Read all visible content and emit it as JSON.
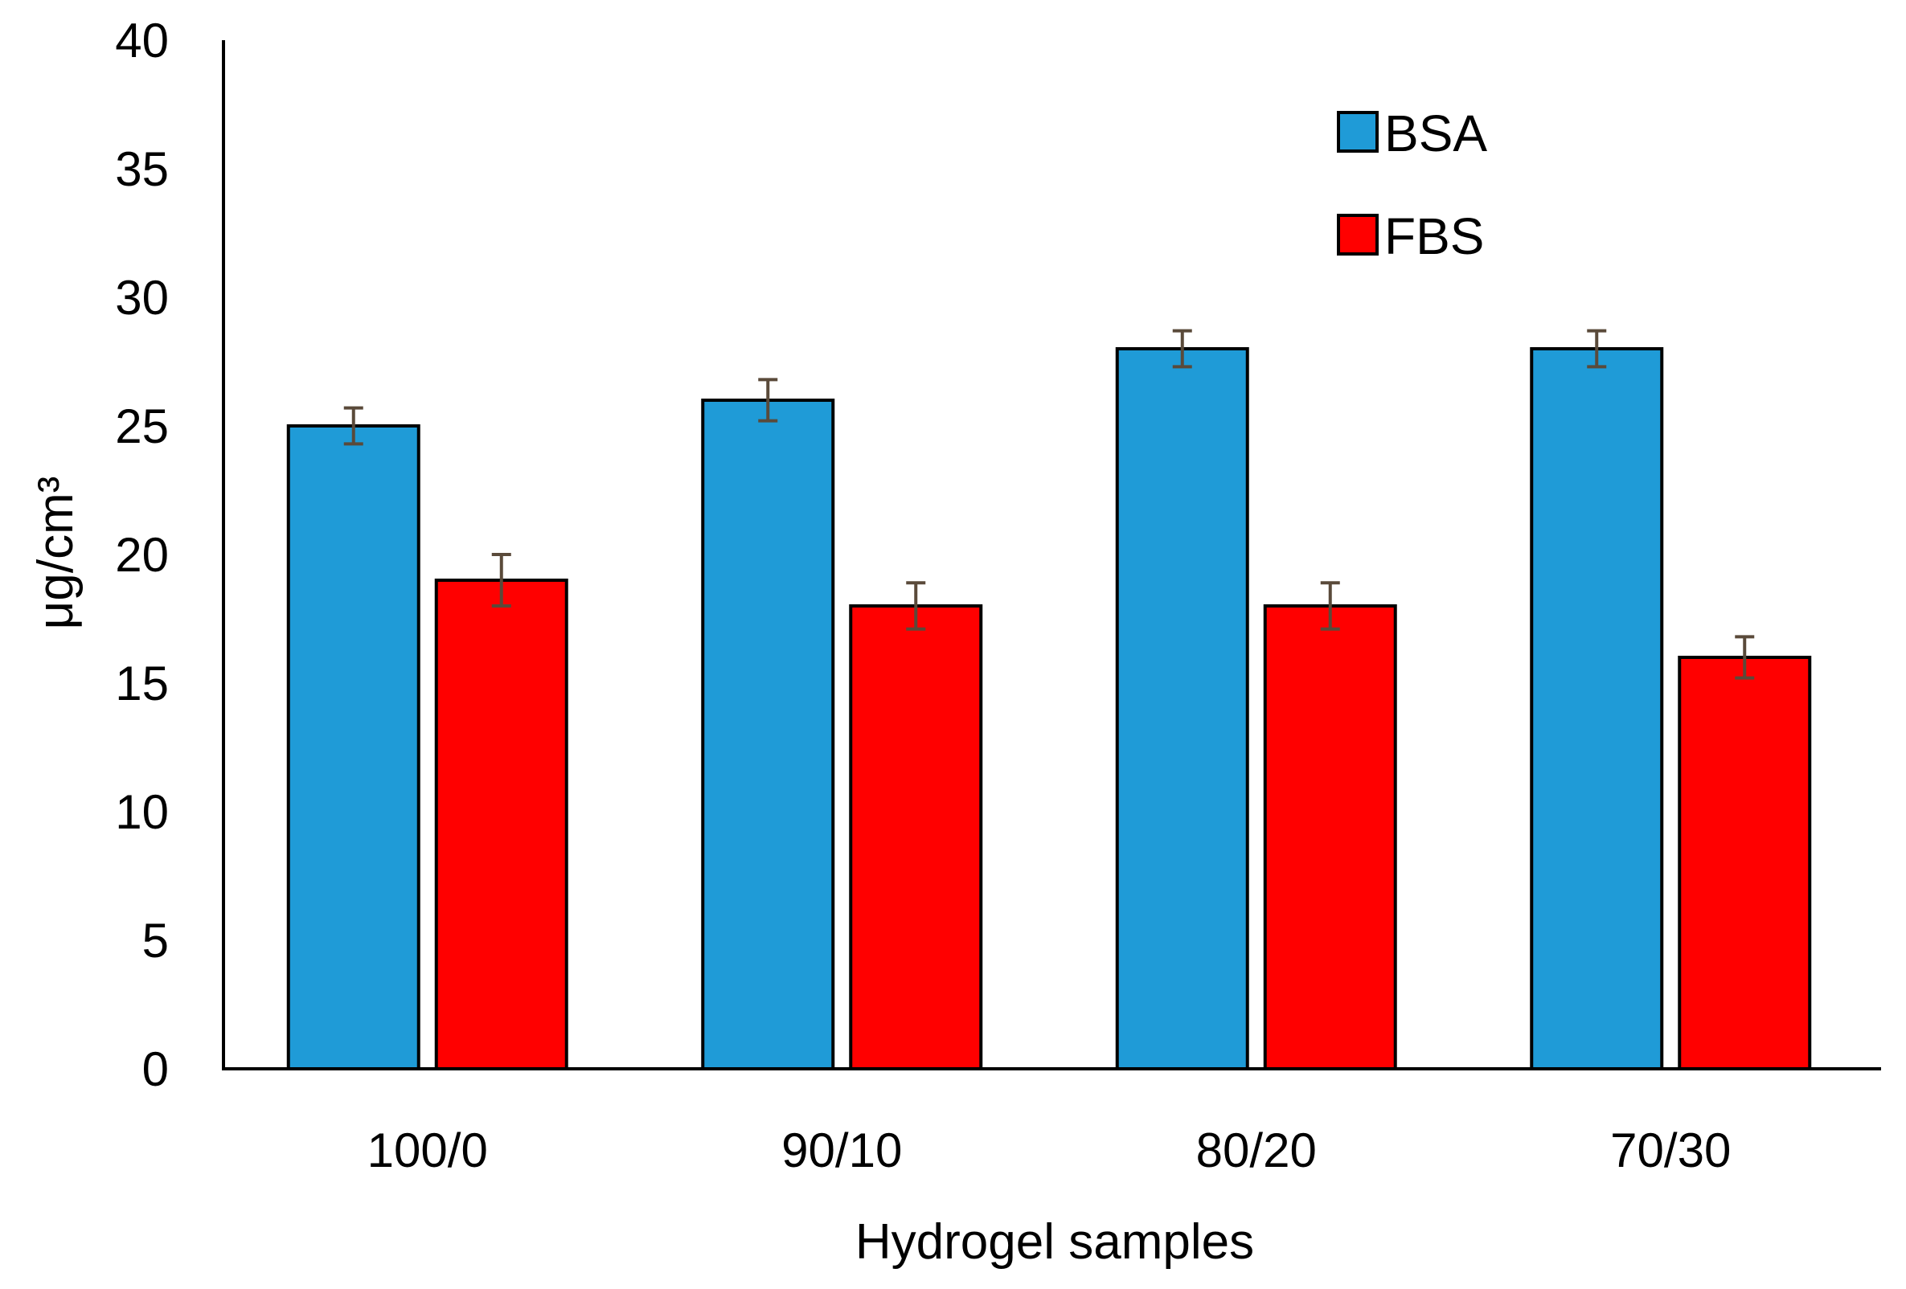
{
  "chart_data": {
    "type": "bar",
    "title": "",
    "xlabel": "Hydrogel samples",
    "ylabel": "μg/cm³",
    "ylim": [
      0,
      40
    ],
    "yticks": [
      0,
      5,
      10,
      15,
      20,
      25,
      30,
      35,
      40
    ],
    "categories": [
      "100/0",
      "90/10",
      "80/20",
      "70/30"
    ],
    "series": [
      {
        "name": "BSA",
        "color": "#1f9bd7",
        "values": [
          25,
          26,
          28,
          28
        ],
        "errors": [
          0.7,
          0.8,
          0.7,
          0.7
        ]
      },
      {
        "name": "FBS",
        "color": "#ff0000",
        "values": [
          19,
          18,
          18,
          16
        ],
        "errors": [
          1.0,
          0.9,
          0.9,
          0.8
        ]
      }
    ],
    "legend": {
      "position": "top-right",
      "items": [
        "BSA",
        "FBS"
      ]
    },
    "grid": false,
    "error_bar_color": "#5a4a3a"
  }
}
